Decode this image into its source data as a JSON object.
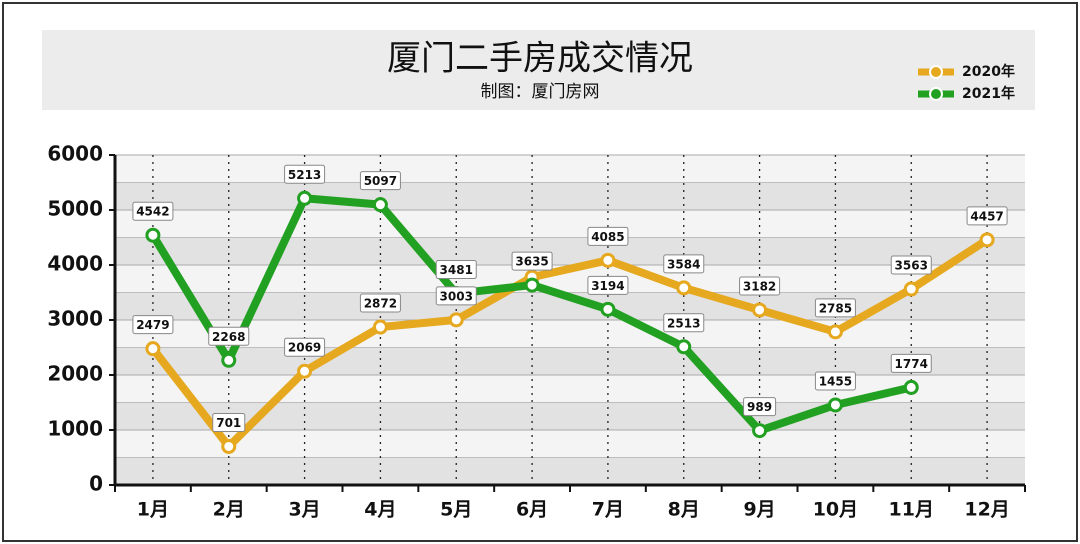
{
  "chart_data": {
    "type": "line",
    "title": "厦门二手房成交情况",
    "subtitle": "制图：厦门房网",
    "categories": [
      "1月",
      "2月",
      "3月",
      "4月",
      "5月",
      "6月",
      "7月",
      "8月",
      "9月",
      "10月",
      "11月",
      "12月"
    ],
    "series": [
      {
        "name": "2020年",
        "color": "#e6a81e",
        "values": [
          2479,
          701,
          2069,
          2872,
          3003,
          3780,
          4085,
          3584,
          3182,
          2785,
          3563,
          4457
        ],
        "value_labels": [
          "2479",
          "701",
          "2069",
          "2872",
          "3003",
          null,
          "4085",
          "3584",
          "3182",
          "2785",
          "3563",
          "4457"
        ]
      },
      {
        "name": "2021年",
        "color": "#22a022",
        "values": [
          4542,
          2268,
          5213,
          5097,
          3481,
          3635,
          3194,
          2513,
          989,
          1455,
          1774,
          null
        ],
        "value_labels": [
          "4542",
          "2268",
          "5213",
          "5097",
          "3481",
          "3635",
          "3194",
          "2513",
          "989",
          "1455",
          "1774",
          null
        ]
      }
    ],
    "ylim": [
      0,
      6000
    ],
    "yticks": [
      0,
      1000,
      2000,
      3000,
      4000,
      5000,
      6000
    ],
    "grid": true,
    "legend": "top-right"
  }
}
